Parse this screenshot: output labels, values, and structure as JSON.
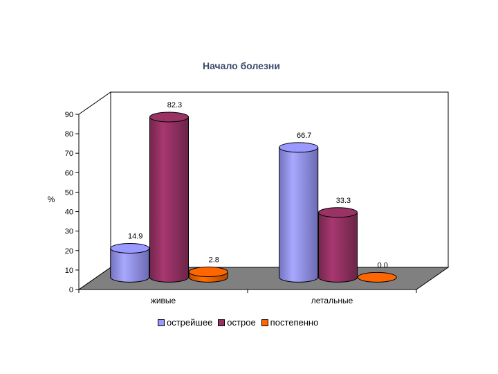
{
  "chart_data": {
    "type": "bar",
    "title": "Начало болезни",
    "ylabel": "%",
    "xlabel": "",
    "categories": [
      "живые",
      "летальные"
    ],
    "series": [
      {
        "name": "острейшее",
        "values": [
          14.9,
          66.7
        ],
        "color": "#9999ff"
      },
      {
        "name": "острое",
        "values": [
          82.3,
          33.3
        ],
        "color": "#993366"
      },
      {
        "name": "постепенно",
        "values": [
          2.8,
          0.0
        ],
        "color": "#ff6600"
      }
    ],
    "data_labels": [
      [
        "14.9",
        "82.3",
        "2.8"
      ],
      [
        "66.7",
        "33.3",
        "0.0"
      ]
    ],
    "ylim": [
      0,
      90
    ],
    "yticks": [
      "0",
      "10",
      "20",
      "30",
      "40",
      "50",
      "60",
      "70",
      "80",
      "90"
    ],
    "grid": false,
    "legend_position": "bottom",
    "style_3d": true,
    "bar_shape": "cylinder"
  }
}
